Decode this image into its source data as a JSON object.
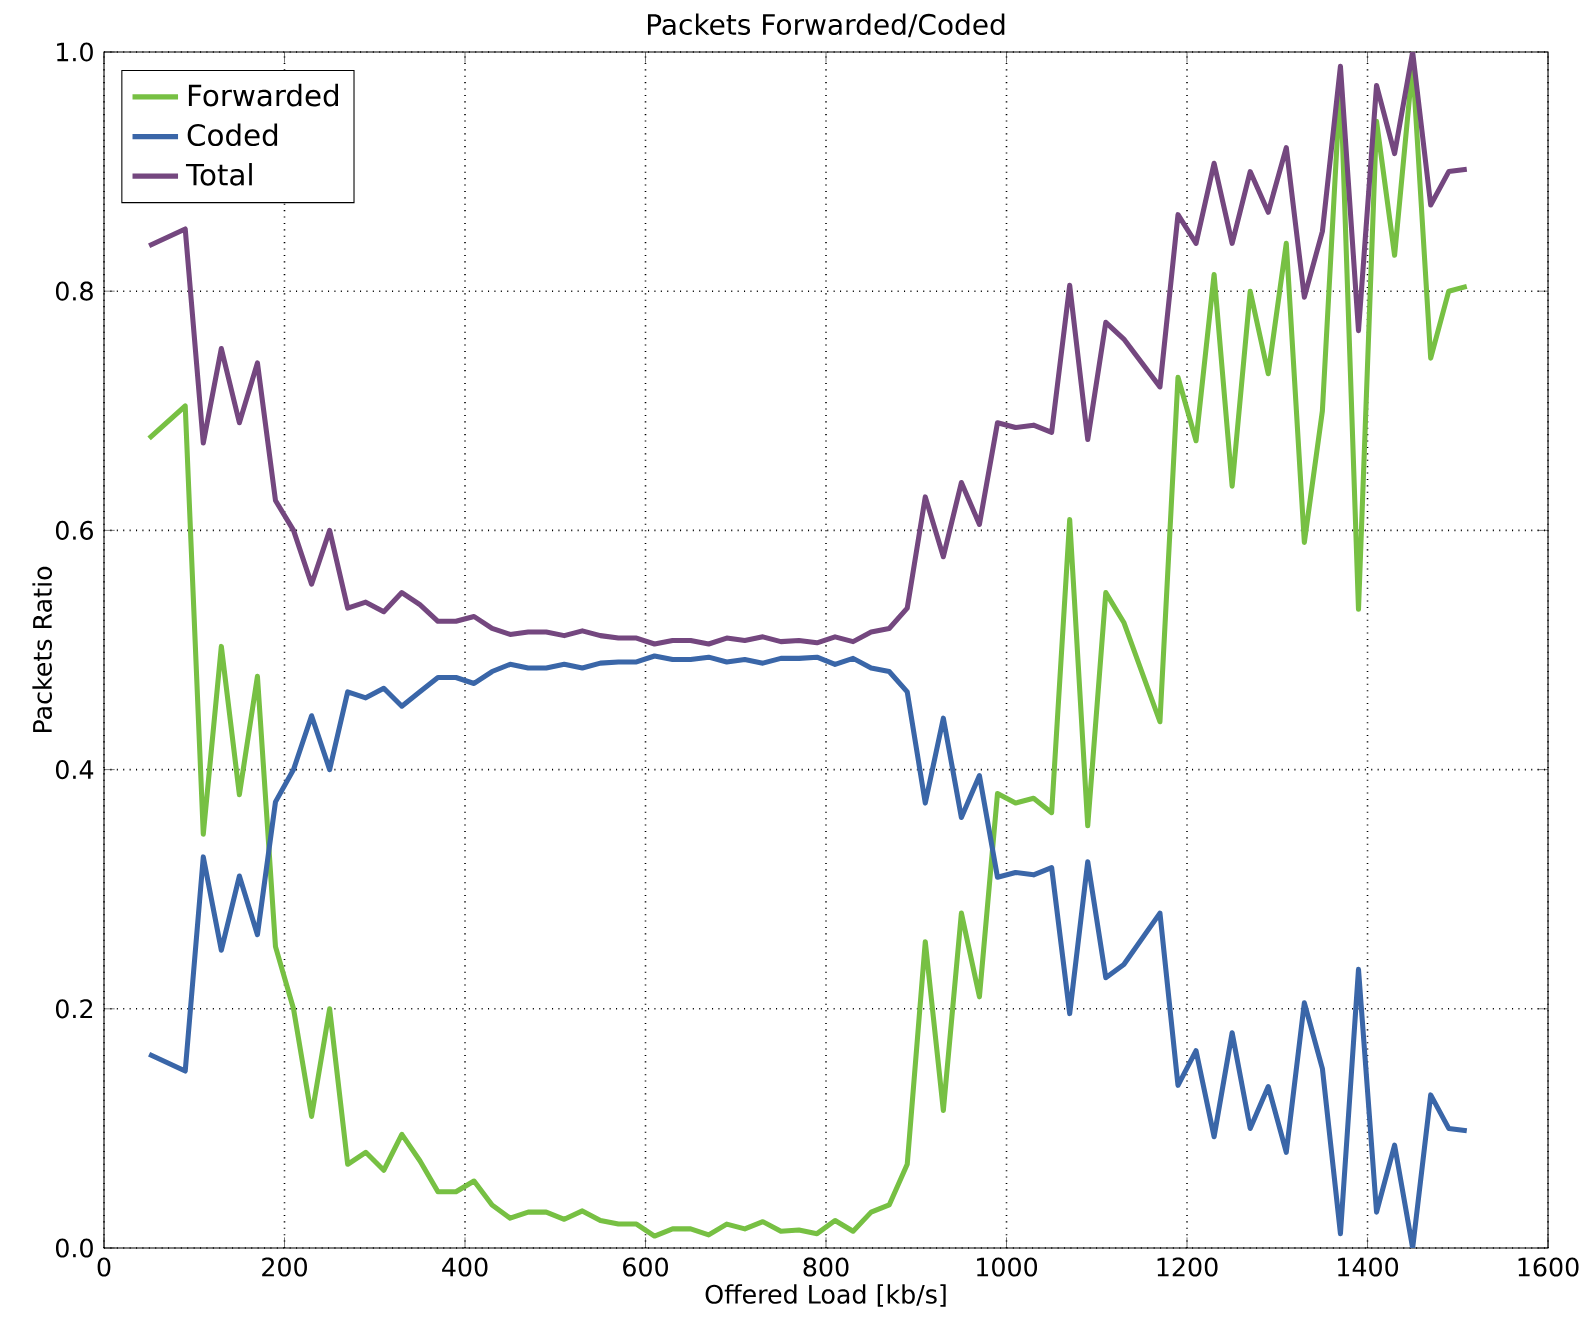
{
  "chart_data": {
    "type": "line",
    "title": "Packets Forwarded/Coded",
    "xlabel": "Offered Load [kb/s]",
    "ylabel": "Packets Ratio",
    "x": [
      50,
      90,
      110,
      130,
      150,
      170,
      190,
      210,
      230,
      250,
      270,
      290,
      310,
      330,
      350,
      370,
      390,
      410,
      430,
      450,
      470,
      490,
      510,
      530,
      550,
      570,
      590,
      610,
      630,
      650,
      670,
      690,
      710,
      730,
      750,
      770,
      790,
      810,
      830,
      850,
      870,
      890,
      910,
      930,
      950,
      970,
      990,
      1010,
      1030,
      1050,
      1070,
      1090,
      1110,
      1130,
      1170,
      1190,
      1210,
      1230,
      1250,
      1270,
      1290,
      1310,
      1330,
      1350,
      1370,
      1390,
      1410,
      1430,
      1450,
      1470,
      1490,
      1510
    ],
    "series": [
      {
        "name": "Forwarded",
        "color": "#77c043",
        "values": [
          0.677,
          0.704,
          0.346,
          0.503,
          0.379,
          0.478,
          0.252,
          0.2,
          0.11,
          0.2,
          0.07,
          0.08,
          0.065,
          0.095,
          0.073,
          0.047,
          0.047,
          0.056,
          0.036,
          0.025,
          0.03,
          0.03,
          0.024,
          0.031,
          0.023,
          0.02,
          0.02,
          0.01,
          0.016,
          0.016,
          0.011,
          0.02,
          0.016,
          0.022,
          0.014,
          0.015,
          0.012,
          0.023,
          0.014,
          0.03,
          0.036,
          0.07,
          0.256,
          0.115,
          0.28,
          0.21,
          0.38,
          0.372,
          0.376,
          0.364,
          0.609,
          0.353,
          0.548,
          0.523,
          0.44,
          0.728,
          0.675,
          0.814,
          0.637,
          0.8,
          0.731,
          0.84,
          0.59,
          0.7,
          0.976,
          0.534,
          0.942,
          0.83,
          0.99,
          0.744,
          0.8,
          0.804
        ]
      },
      {
        "name": "Coded",
        "color": "#3a66a8",
        "values": [
          0.162,
          0.148,
          0.327,
          0.249,
          0.311,
          0.262,
          0.373,
          0.4,
          0.445,
          0.4,
          0.465,
          0.46,
          0.468,
          0.453,
          0.465,
          0.477,
          0.477,
          0.472,
          0.482,
          0.488,
          0.485,
          0.485,
          0.488,
          0.485,
          0.489,
          0.49,
          0.49,
          0.495,
          0.492,
          0.492,
          0.494,
          0.49,
          0.492,
          0.489,
          0.493,
          0.493,
          0.494,
          0.488,
          0.493,
          0.485,
          0.482,
          0.465,
          0.372,
          0.443,
          0.36,
          0.395,
          0.31,
          0.314,
          0.312,
          0.318,
          0.196,
          0.323,
          0.226,
          0.237,
          0.28,
          0.136,
          0.165,
          0.093,
          0.18,
          0.1,
          0.135,
          0.08,
          0.205,
          0.15,
          0.012,
          0.233,
          0.03,
          0.086,
          0.0,
          0.128,
          0.1,
          0.098
        ]
      },
      {
        "name": "Total",
        "color": "#74477f",
        "values": [
          0.838,
          0.852,
          0.673,
          0.752,
          0.69,
          0.74,
          0.625,
          0.6,
          0.555,
          0.6,
          0.535,
          0.54,
          0.532,
          0.548,
          0.538,
          0.524,
          0.524,
          0.528,
          0.518,
          0.513,
          0.515,
          0.515,
          0.512,
          0.516,
          0.512,
          0.51,
          0.51,
          0.505,
          0.508,
          0.508,
          0.505,
          0.51,
          0.508,
          0.511,
          0.507,
          0.508,
          0.506,
          0.511,
          0.507,
          0.515,
          0.518,
          0.535,
          0.628,
          0.578,
          0.64,
          0.605,
          0.69,
          0.686,
          0.688,
          0.682,
          0.805,
          0.676,
          0.774,
          0.76,
          0.72,
          0.864,
          0.84,
          0.907,
          0.84,
          0.9,
          0.866,
          0.92,
          0.795,
          0.85,
          0.988,
          0.767,
          0.972,
          0.915,
          1.0,
          0.872,
          0.9,
          0.902
        ]
      }
    ],
    "xlim": [
      0,
      1600
    ],
    "ylim": [
      0,
      1.0
    ],
    "xticks": [
      0,
      200,
      400,
      600,
      800,
      1000,
      1200,
      1400,
      1600
    ],
    "yticks": [
      {
        "value": 0,
        "label": "0.0"
      },
      {
        "value": 0.2,
        "label": "0.2"
      },
      {
        "value": 0.4,
        "label": "0.4"
      },
      {
        "value": 0.6,
        "label": "0.6"
      },
      {
        "value": 0.8,
        "label": "0.8"
      },
      {
        "value": 1.0,
        "label": "1.0"
      }
    ],
    "grid": true,
    "legend": "top left",
    "marker": "none",
    "line_style": "solid"
  }
}
